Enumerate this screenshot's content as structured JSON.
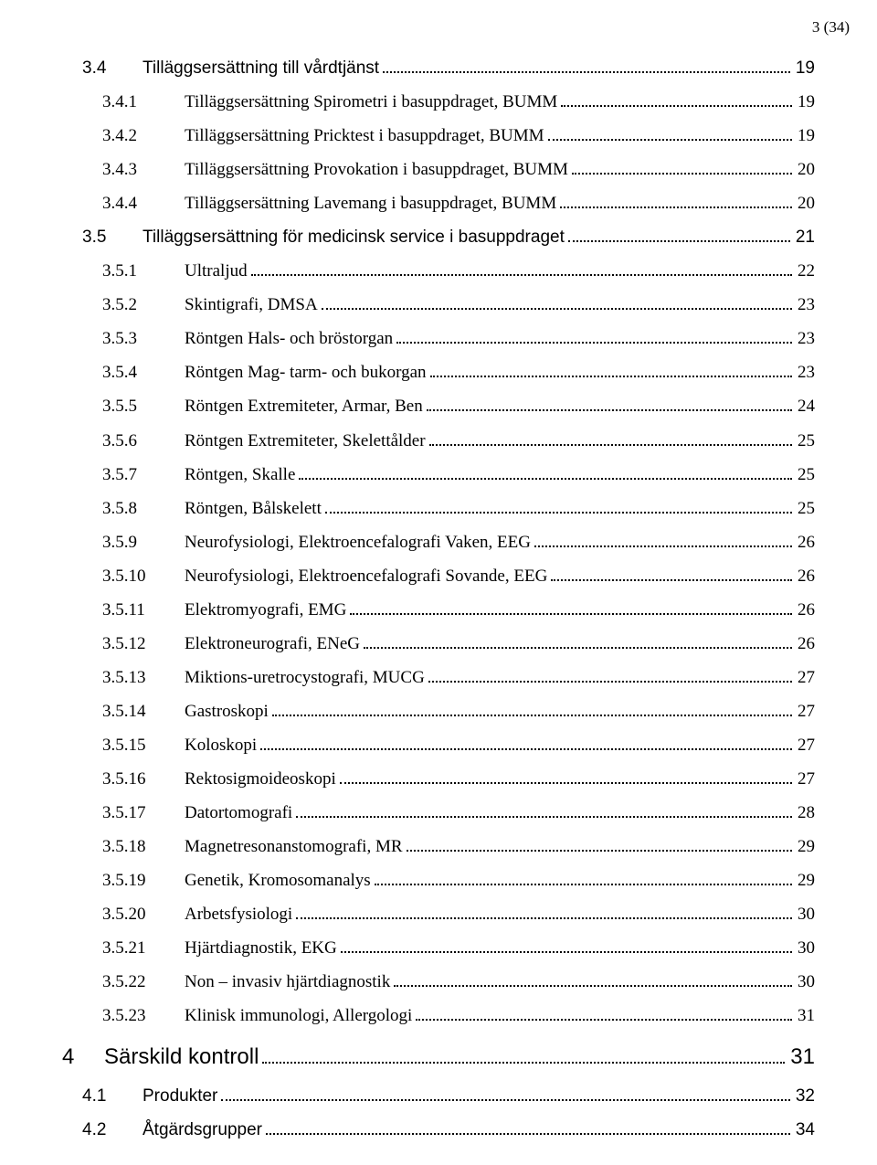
{
  "header": {
    "page_indicator": "3 (34)"
  },
  "toc": {
    "entries": [
      {
        "level": 2,
        "num": "3.4",
        "title": "Tilläggsersättning till vårdtjänst",
        "page": "19"
      },
      {
        "level": 3,
        "num": "3.4.1",
        "title": "Tilläggsersättning Spirometri i basuppdraget, BUMM",
        "page": "19"
      },
      {
        "level": 3,
        "num": "3.4.2",
        "title": "Tilläggsersättning Pricktest i basuppdraget, BUMM",
        "page": "19"
      },
      {
        "level": 3,
        "num": "3.4.3",
        "title": "Tilläggsersättning Provokation i basuppdraget, BUMM",
        "page": "20"
      },
      {
        "level": 3,
        "num": "3.4.4",
        "title": "Tilläggsersättning Lavemang i basuppdraget, BUMM",
        "page": "20"
      },
      {
        "level": 2,
        "num": "3.5",
        "title": "Tilläggsersättning för medicinsk service i basuppdraget",
        "page": "21"
      },
      {
        "level": 3,
        "num": "3.5.1",
        "title": "Ultraljud",
        "page": "22"
      },
      {
        "level": 3,
        "num": "3.5.2",
        "title": "Skintigrafi, DMSA",
        "page": "23"
      },
      {
        "level": 3,
        "num": "3.5.3",
        "title": "Röntgen Hals- och bröstorgan",
        "page": "23"
      },
      {
        "level": 3,
        "num": "3.5.4",
        "title": "Röntgen Mag- tarm- och bukorgan",
        "page": "23"
      },
      {
        "level": 3,
        "num": "3.5.5",
        "title": "Röntgen Extremiteter, Armar, Ben",
        "page": "24"
      },
      {
        "level": 3,
        "num": "3.5.6",
        "title": "Röntgen Extremiteter, Skelettålder",
        "page": "25"
      },
      {
        "level": 3,
        "num": "3.5.7",
        "title": "Röntgen, Skalle",
        "page": "25"
      },
      {
        "level": 3,
        "num": "3.5.8",
        "title": "Röntgen, Bålskelett",
        "page": "25"
      },
      {
        "level": 3,
        "num": "3.5.9",
        "title": "Neurofysiologi, Elektroencefalografi Vaken, EEG",
        "page": "26"
      },
      {
        "level": 3,
        "num": "3.5.10",
        "title": "Neurofysiologi, Elektroencefalografi Sovande, EEG",
        "page": "26"
      },
      {
        "level": 3,
        "num": "3.5.11",
        "title": "Elektromyografi, EMG",
        "page": "26"
      },
      {
        "level": 3,
        "num": "3.5.12",
        "title": "Elektroneurografi, ENeG",
        "page": "26"
      },
      {
        "level": 3,
        "num": "3.5.13",
        "title": "Miktions-uretrocystografi, MUCG",
        "page": "27"
      },
      {
        "level": 3,
        "num": "3.5.14",
        "title": "Gastroskopi",
        "page": "27"
      },
      {
        "level": 3,
        "num": "3.5.15",
        "title": "Koloskopi",
        "page": "27"
      },
      {
        "level": 3,
        "num": "3.5.16",
        "title": "Rektosigmoideoskopi",
        "page": "27"
      },
      {
        "level": 3,
        "num": "3.5.17",
        "title": "Datortomografi",
        "page": "28"
      },
      {
        "level": 3,
        "num": "3.5.18",
        "title": "Magnetresonanstomografi, MR",
        "page": "29"
      },
      {
        "level": 3,
        "num": "3.5.19",
        "title": "Genetik, Kromosomanalys",
        "page": "29"
      },
      {
        "level": 3,
        "num": "3.5.20",
        "title": "Arbetsfysiologi",
        "page": "30"
      },
      {
        "level": 3,
        "num": "3.5.21",
        "title": "Hjärtdiagnostik, EKG",
        "page": "30"
      },
      {
        "level": 3,
        "num": "3.5.22",
        "title": "Non – invasiv hjärtdiagnostik",
        "page": "30"
      },
      {
        "level": 3,
        "num": "3.5.23",
        "title": "Klinisk immunologi, Allergologi",
        "page": "31"
      },
      {
        "level": 1,
        "num": "4",
        "title": "Särskild kontroll",
        "page": "31"
      },
      {
        "level": 2,
        "num": "4.1",
        "title": "Produkter",
        "page": "32"
      },
      {
        "level": 2,
        "num": "4.2",
        "title": "Åtgärdsgrupper",
        "page": "34"
      }
    ]
  }
}
